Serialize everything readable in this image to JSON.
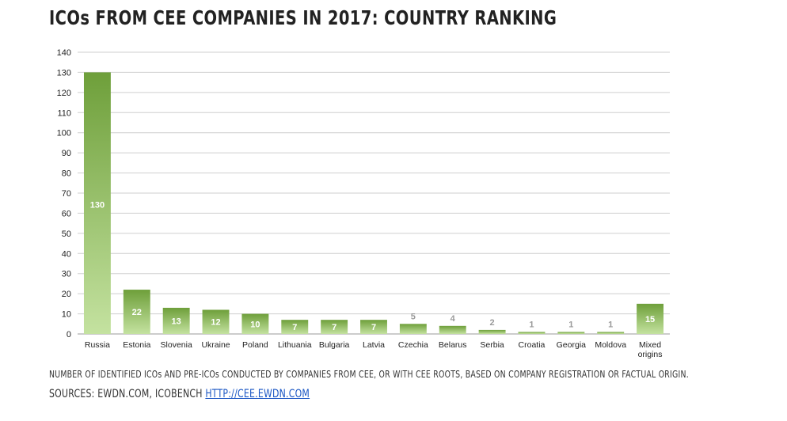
{
  "title": "ICOs FROM CEE COMPANIES IN 2017: COUNTRY RANKING",
  "note": "NUMBER OF IDENTIFIED ICOs AND PRE-ICOs CONDUCTED BY COMPANIES FROM CEE, OR WITH CEE ROOTS,  BASED ON COMPANY REGISTRATION OR FACTUAL ORIGIN.",
  "sources": {
    "prefix": "SOURCES: EWDN.COM, ICOBENCH ",
    "link": "HTTP://CEE.EWDN.COM"
  },
  "colors": {
    "bar_top": "#6e9f3a",
    "bar_bottom": "#c4e2a0",
    "grid": "#cfcfcf",
    "label_inside": "#ffffff",
    "label_outside": "#9a9a9a"
  },
  "chart_data": {
    "type": "bar",
    "categories": [
      "Russia",
      "Estonia",
      "Slovenia",
      "Ukraine",
      "Poland",
      "Lithuania",
      "Bulgaria",
      "Latvia",
      "Czechia",
      "Belarus",
      "Serbia",
      "Croatia",
      "Georgia",
      "Moldova",
      "Mixed origins"
    ],
    "category_lines": [
      [
        "Russia"
      ],
      [
        "Estonia"
      ],
      [
        "Slovenia"
      ],
      [
        "Ukraine"
      ],
      [
        "Poland"
      ],
      [
        "Lithuania"
      ],
      [
        "Bulgaria"
      ],
      [
        "Latvia"
      ],
      [
        "Czechia"
      ],
      [
        "Belarus"
      ],
      [
        "Serbia"
      ],
      [
        "Croatia"
      ],
      [
        "Georgia"
      ],
      [
        "Moldova"
      ],
      [
        "Mixed",
        "origins"
      ]
    ],
    "values": [
      130,
      22,
      13,
      12,
      10,
      7,
      7,
      7,
      5,
      4,
      2,
      1,
      1,
      1,
      15
    ],
    "ylim": [
      0,
      140
    ],
    "yticks": [
      0,
      10,
      20,
      30,
      40,
      50,
      60,
      70,
      80,
      90,
      100,
      110,
      120,
      130,
      140
    ],
    "grid": true,
    "data_labels": true
  }
}
